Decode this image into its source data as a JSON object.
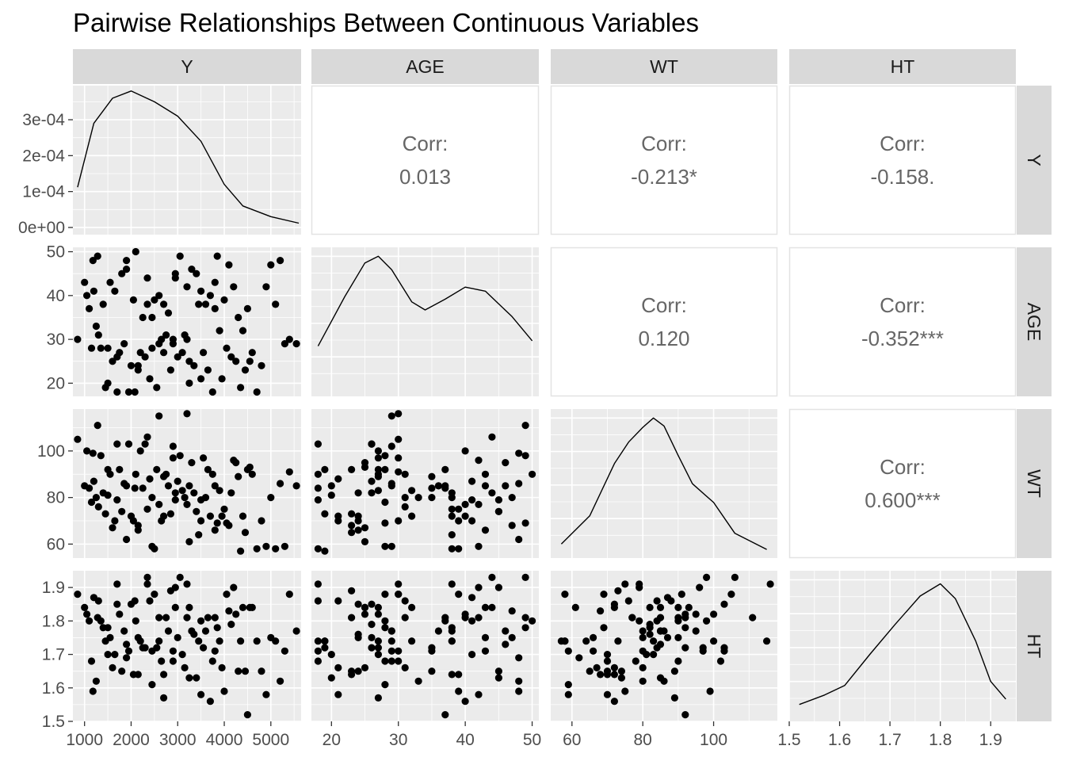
{
  "chart_data": {
    "type": "scatter",
    "title": "Pairwise Relationships Between Continuous Variables",
    "variables": [
      "Y",
      "AGE",
      "WT",
      "HT"
    ],
    "axes": {
      "Y": {
        "range": [
          750,
          5650
        ],
        "ticks": [
          1000,
          2000,
          3000,
          4000,
          5000
        ],
        "tick_labels": [
          "1000",
          "2000",
          "3000",
          "4000",
          "5000"
        ]
      },
      "AGE": {
        "range": [
          17,
          51
        ],
        "ticks": [
          20,
          30,
          40,
          50
        ],
        "tick_labels": [
          "20",
          "30",
          "40",
          "50"
        ]
      },
      "WT": {
        "range": [
          54,
          118
        ],
        "ticks": [
          60,
          80,
          100
        ],
        "tick_labels": [
          "60",
          "80",
          "100"
        ]
      },
      "HT": {
        "range": [
          1.5,
          1.95
        ],
        "ticks": [
          1.5,
          1.6,
          1.7,
          1.8,
          1.9
        ],
        "tick_labels": [
          "1.5",
          "1.6",
          "1.7",
          "1.8",
          "1.9"
        ]
      }
    },
    "density_axis": {
      "range": [
        -2e-05,
        0.000395
      ],
      "ticks": [
        0,
        0.0001,
        0.0002,
        0.0003
      ],
      "tick_labels": [
        "0e+00",
        "1e-04",
        "2e-04",
        "3e-04"
      ]
    },
    "densities": {
      "Y": [
        [
          850,
          0.000112
        ],
        [
          1200,
          0.00029
        ],
        [
          1600,
          0.00036
        ],
        [
          2000,
          0.00038
        ],
        [
          2500,
          0.00035
        ],
        [
          3000,
          0.00031
        ],
        [
          3500,
          0.00024
        ],
        [
          4000,
          0.00012
        ],
        [
          4400,
          6e-05
        ],
        [
          5000,
          3e-05
        ],
        [
          5600,
          1.2e-05
        ]
      ],
      "AGE": [
        [
          18,
          0.33
        ],
        [
          22,
          0.7
        ],
        [
          25,
          0.95
        ],
        [
          27,
          1.0
        ],
        [
          29,
          0.9
        ],
        [
          32,
          0.66
        ],
        [
          34,
          0.6
        ],
        [
          37,
          0.68
        ],
        [
          40,
          0.77
        ],
        [
          43,
          0.74
        ],
        [
          47,
          0.55
        ],
        [
          50,
          0.37
        ]
      ],
      "WT": [
        [
          57,
          0.06
        ],
        [
          65,
          0.27
        ],
        [
          72,
          0.66
        ],
        [
          76,
          0.82
        ],
        [
          80,
          0.93
        ],
        [
          83,
          1.0
        ],
        [
          86,
          0.94
        ],
        [
          90,
          0.72
        ],
        [
          94,
          0.51
        ],
        [
          100,
          0.37
        ],
        [
          106,
          0.14
        ],
        [
          115,
          0.02
        ]
      ],
      "HT": [
        [
          1.52,
          0.08
        ],
        [
          1.57,
          0.15
        ],
        [
          1.61,
          0.22
        ],
        [
          1.66,
          0.45
        ],
        [
          1.71,
          0.67
        ],
        [
          1.76,
          0.88
        ],
        [
          1.8,
          0.97
        ],
        [
          1.83,
          0.86
        ],
        [
          1.87,
          0.55
        ],
        [
          1.9,
          0.25
        ],
        [
          1.93,
          0.12
        ]
      ]
    },
    "correlations": [
      {
        "row": "Y",
        "col": "AGE",
        "label": "Corr:",
        "value": "0.013"
      },
      {
        "row": "Y",
        "col": "WT",
        "label": "Corr:",
        "value": "-0.213*"
      },
      {
        "row": "Y",
        "col": "HT",
        "label": "Corr:",
        "value": "-0.158."
      },
      {
        "row": "AGE",
        "col": "WT",
        "label": "Corr:",
        "value": "0.120"
      },
      {
        "row": "AGE",
        "col": "HT",
        "label": "Corr:",
        "value": "-0.352***"
      },
      {
        "row": "WT",
        "col": "HT",
        "label": "Corr:",
        "value": "0.600***"
      }
    ],
    "observations": [
      [
        850,
        30,
        105,
        1.88
      ],
      [
        1000,
        43,
        85,
        1.84
      ],
      [
        1050,
        40,
        100,
        1.82
      ],
      [
        1100,
        37,
        84,
        1.8
      ],
      [
        1150,
        28,
        78,
        1.68
      ],
      [
        1180,
        48,
        99,
        1.59
      ],
      [
        1200,
        41,
        87,
        1.87
      ],
      [
        1250,
        33,
        80,
        1.62
      ],
      [
        1280,
        49,
        111,
        1.81
      ],
      [
        1300,
        31,
        76,
        1.86
      ],
      [
        1350,
        28,
        98,
        1.8
      ],
      [
        1400,
        38,
        82,
        1.78
      ],
      [
        1450,
        19,
        73,
        1.74
      ],
      [
        1500,
        20,
        81,
        1.7
      ],
      [
        1550,
        43,
        90,
        1.75
      ],
      [
        1600,
        25,
        67,
        1.66
      ],
      [
        1650,
        41,
        70,
        1.7
      ],
      [
        1700,
        18,
        79,
        1.91
      ],
      [
        1750,
        27,
        92,
        1.82
      ],
      [
        1800,
        45,
        74,
        1.65
      ],
      [
        1850,
        29,
        86,
        1.77
      ],
      [
        1900,
        46,
        85,
        1.73
      ],
      [
        1950,
        18,
        103,
        1.71
      ],
      [
        2000,
        24,
        72,
        1.85
      ],
      [
        2050,
        39,
        70,
        1.64
      ],
      [
        2100,
        50,
        90,
        1.8
      ],
      [
        2150,
        23,
        68,
        1.64
      ],
      [
        2200,
        27,
        100,
        1.74
      ],
      [
        2250,
        35,
        84,
        1.72
      ],
      [
        2300,
        26,
        103,
        1.72
      ],
      [
        2350,
        38,
        75,
        1.91
      ],
      [
        2400,
        21,
        88,
        1.86
      ],
      [
        2450,
        28,
        59,
        1.61
      ],
      [
        2500,
        39,
        58,
        1.88
      ],
      [
        2550,
        19,
        92,
        1.72
      ],
      [
        2600,
        40,
        77,
        1.81
      ],
      [
        2650,
        30,
        70,
        1.68
      ],
      [
        2700,
        27,
        89,
        1.57
      ],
      [
        2750,
        31,
        90,
        1.81
      ],
      [
        2800,
        36,
        85,
        1.77
      ],
      [
        2850,
        23,
        73,
        1.89
      ],
      [
        2900,
        29,
        102,
        1.68
      ],
      [
        2950,
        44,
        82,
        1.84
      ],
      [
        3000,
        26,
        87,
        1.75
      ],
      [
        3050,
        49,
        98,
        1.93
      ],
      [
        3100,
        27,
        83,
        1.7
      ],
      [
        3150,
        31,
        80,
        1.66
      ],
      [
        3200,
        42,
        77,
        1.81
      ],
      [
        3250,
        25,
        61,
        1.84
      ],
      [
        3300,
        46,
        95,
        1.77
      ],
      [
        3350,
        24,
        82,
        1.76
      ],
      [
        3400,
        45,
        74,
        1.63
      ],
      [
        3450,
        38,
        64,
        1.74
      ],
      [
        3500,
        21,
        70,
        1.58
      ],
      [
        3550,
        27,
        97,
        1.72
      ],
      [
        3600,
        38,
        80,
        1.77
      ],
      [
        3650,
        23,
        92,
        1.81
      ],
      [
        3700,
        40,
        72,
        1.56
      ],
      [
        3750,
        18,
        90,
        1.68
      ],
      [
        3800,
        37,
        85,
        1.81
      ],
      [
        3850,
        49,
        69,
        1.78
      ],
      [
        3900,
        32,
        83,
        1.74
      ],
      [
        3950,
        21,
        72,
        1.66
      ],
      [
        4000,
        39,
        75,
        1.59
      ],
      [
        4050,
        28,
        69,
        1.88
      ],
      [
        4100,
        47,
        68,
        1.83
      ],
      [
        4150,
        26,
        82,
        1.79
      ],
      [
        4200,
        42,
        96,
        1.9
      ],
      [
        4250,
        25,
        95,
        1.82
      ],
      [
        4300,
        35,
        89,
        1.65
      ],
      [
        4350,
        19,
        57,
        1.74
      ],
      [
        4400,
        32,
        72,
        1.84
      ],
      [
        4450,
        23,
        65,
        1.65
      ],
      [
        4500,
        37,
        92,
        1.52
      ],
      [
        4550,
        25,
        93,
        1.84
      ],
      [
        4600,
        27,
        90,
        1.84
      ],
      [
        4700,
        18,
        58,
        1.74
      ],
      [
        4800,
        24,
        70,
        1.65
      ],
      [
        4900,
        42,
        59,
        1.58
      ],
      [
        5000,
        47,
        80,
        1.75
      ],
      [
        5100,
        38,
        58,
        1.74
      ],
      [
        5200,
        48,
        86,
        1.62
      ],
      [
        5300,
        29,
        59,
        1.71
      ],
      [
        5400,
        30,
        91,
        1.88
      ],
      [
        5550,
        29,
        85,
        1.77
      ],
      [
        2080,
        18,
        84,
        1.86
      ],
      [
        2350,
        44,
        106,
        1.93
      ],
      [
        2600,
        29,
        115,
        1.74
      ],
      [
        2900,
        30,
        97,
        1.71
      ],
      [
        3200,
        30,
        116,
        1.91
      ],
      [
        1500,
        28,
        92,
        1.78
      ],
      [
        1700,
        26,
        103,
        1.85
      ],
      [
        1900,
        48,
        62,
        1.69
      ],
      [
        2150,
        24,
        66,
        1.75
      ],
      [
        2450,
        35,
        80,
        1.71
      ],
      [
        2700,
        38,
        72,
        1.64
      ],
      [
        2950,
        45,
        79,
        1.9
      ],
      [
        3250,
        20,
        85,
        1.63
      ],
      [
        3500,
        41,
        79,
        1.8
      ],
      [
        3800,
        43,
        66,
        1.71
      ]
    ]
  }
}
